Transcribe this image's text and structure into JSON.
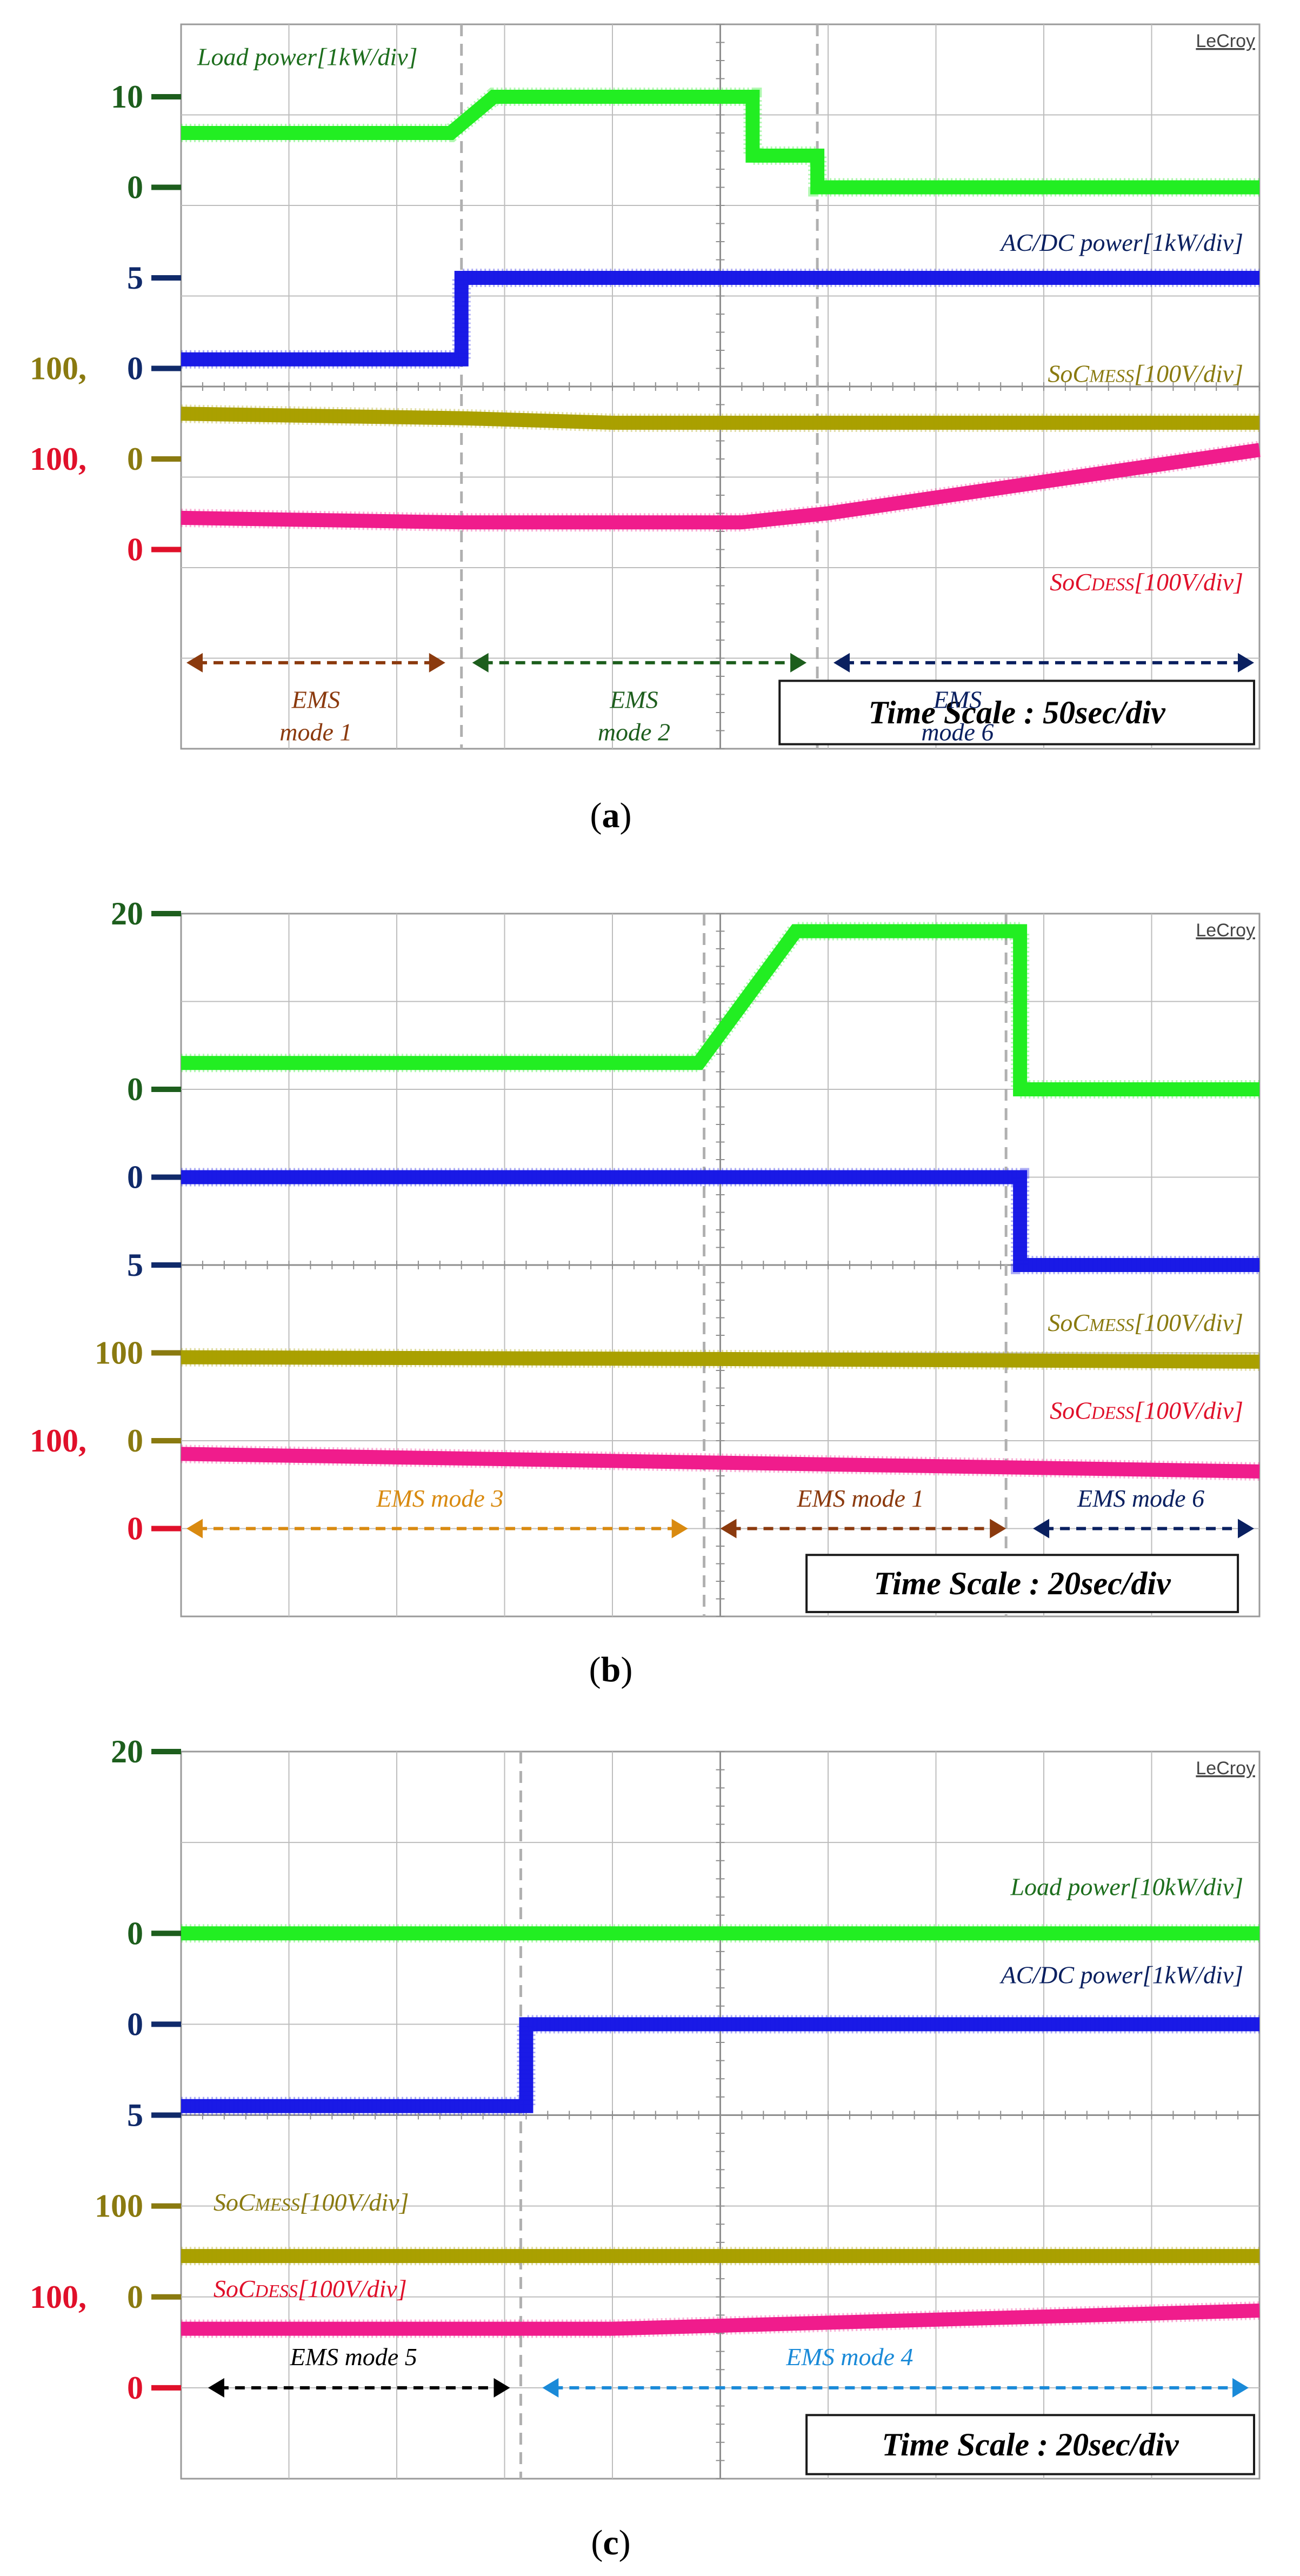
{
  "colors": {
    "load": "#22ee22",
    "acdc": "#1a1ae6",
    "mess": "#aaa000",
    "dess": "#f01c8c",
    "grid": "#bdbdbd",
    "dash": "#b0b0b0",
    "ylab_green": "#1d5e1d",
    "ylab_blue": "#102a6a",
    "ylab_olive": "#8a7a10",
    "ylab_red": "#e0102a"
  },
  "chart_data": [
    {
      "type": "line",
      "caption": "(a)",
      "brand": "LeCroy",
      "time_scale": "Time Scale : 50sec/div",
      "x_divisions": 10,
      "y_divisions": 8,
      "y_labels": [
        {
          "text": "10",
          "level": 7.2,
          "color": "ylab_green"
        },
        {
          "text": "0",
          "level": 6.2,
          "color": "ylab_green"
        },
        {
          "text": "5",
          "level": 5.2,
          "color": "ylab_blue"
        },
        {
          "text": "100,",
          "level": 4.2,
          "color": "ylab_olive",
          "shift": 1
        },
        {
          "text": "0",
          "level": 4.2,
          "color": "ylab_blue"
        },
        {
          "text": "100,",
          "level": 3.2,
          "color": "ylab_red",
          "shift": 1
        },
        {
          "text": "0",
          "level": 3.2,
          "color": "ylab_olive"
        },
        {
          "text": "0",
          "level": 2.2,
          "color": "ylab_red"
        }
      ],
      "series": [
        {
          "key": "load",
          "points": [
            [
              0,
              6.8
            ],
            [
              2.5,
              6.8
            ],
            [
              2.9,
              7.2
            ],
            [
              5.3,
              7.2
            ],
            [
              5.3,
              6.55
            ],
            [
              5.9,
              6.55
            ],
            [
              5.9,
              6.2
            ],
            [
              10,
              6.2
            ]
          ]
        },
        {
          "key": "acdc",
          "points": [
            [
              0,
              4.3
            ],
            [
              2.6,
              4.3
            ],
            [
              2.6,
              5.2
            ],
            [
              10,
              5.2
            ]
          ]
        },
        {
          "key": "mess",
          "points": [
            [
              0,
              3.7
            ],
            [
              2.6,
              3.65
            ],
            [
              4.0,
              3.6
            ],
            [
              10,
              3.6
            ]
          ]
        },
        {
          "key": "dess",
          "points": [
            [
              0,
              2.55
            ],
            [
              2.6,
              2.5
            ],
            [
              5.2,
              2.5
            ],
            [
              6.0,
              2.6
            ],
            [
              10,
              3.3
            ]
          ]
        }
      ],
      "vlines": [
        2.6,
        5.9
      ],
      "labels": [
        {
          "text": "Load power[1kW/div]",
          "x": 0.15,
          "level": 7.55,
          "anchor": "start",
          "color": "load_text"
        },
        {
          "text": "AC/DC power[1kW/div]",
          "x": 9.85,
          "level": 5.5,
          "anchor": "end",
          "color": "acdc_text"
        },
        {
          "text": "SoC",
          "sub": "MESS",
          "tail": "[100V/div]",
          "x": 9.85,
          "level": 4.05,
          "anchor": "end",
          "color": "mess_text"
        },
        {
          "text": "SoC",
          "sub": "DESS",
          "tail": "[100V/div]",
          "x": 9.85,
          "level": 1.75,
          "anchor": "end",
          "color": "dess_text"
        }
      ],
      "arrows": [
        {
          "x1": 0.05,
          "x2": 2.45,
          "level": 0.95,
          "color": "#8b3a0e"
        },
        {
          "x1": 2.7,
          "x2": 5.8,
          "level": 0.95,
          "color": "#1d5e1d"
        },
        {
          "x1": 6.05,
          "x2": 9.95,
          "level": 0.95,
          "color": "#0a2060"
        }
      ],
      "modes": [
        {
          "lines": [
            "EMS",
            "mode 1"
          ],
          "x": 1.25,
          "level": 0.45,
          "color": "#8b3a0e"
        },
        {
          "lines": [
            "EMS",
            "mode 2"
          ],
          "x": 4.2,
          "level": 0.45,
          "color": "#1d5e1d"
        },
        {
          "lines": [
            "EMS",
            "mode 6"
          ],
          "x": 7.2,
          "level": 0.45,
          "color": "#0a2060"
        }
      ],
      "ts_box": {
        "x1": 5.55,
        "x2": 9.95,
        "level_top": 0.75,
        "level_bot": 0.05
      }
    },
    {
      "type": "line",
      "caption": "(b)",
      "brand": "LeCroy",
      "time_scale": "Time Scale : 20sec/div",
      "x_divisions": 10,
      "y_divisions": 8,
      "y_labels": [
        {
          "text": "20",
          "level": 8.0,
          "color": "ylab_green"
        },
        {
          "text": "0",
          "level": 6.0,
          "color": "ylab_green"
        },
        {
          "text": "0",
          "level": 5.0,
          "color": "ylab_blue"
        },
        {
          "text": "5",
          "level": 4.0,
          "color": "ylab_blue"
        },
        {
          "text": "100",
          "level": 3.0,
          "color": "ylab_olive"
        },
        {
          "text": "100,",
          "level": 2.0,
          "color": "ylab_red",
          "shift": 1
        },
        {
          "text": "0",
          "level": 2.0,
          "color": "ylab_olive"
        },
        {
          "text": "0",
          "level": 1.0,
          "color": "ylab_red"
        }
      ],
      "series": [
        {
          "key": "load",
          "points": [
            [
              0,
              6.3
            ],
            [
              4.8,
              6.3
            ],
            [
              5.7,
              7.8
            ],
            [
              10,
              7.8
            ]
          ],
          "drop": [
            [
              10,
              7.8
            ]
          ],
          "pts2": [
            [
              0,
              6.3
            ],
            [
              4.8,
              6.3
            ],
            [
              5.7,
              7.8
            ],
            [
              7.78,
              7.8
            ],
            [
              7.78,
              6.0
            ],
            [
              10,
              6.0
            ]
          ]
        },
        {
          "key": "acdc",
          "points": [
            [
              0,
              5.0
            ],
            [
              7.78,
              5.0
            ],
            [
              7.78,
              4.0
            ],
            [
              10,
              4.0
            ]
          ]
        },
        {
          "key": "mess",
          "points": [
            [
              0,
              2.95
            ],
            [
              5,
              2.93
            ],
            [
              10,
              2.9
            ]
          ]
        },
        {
          "key": "dess",
          "points": [
            [
              0,
              1.85
            ],
            [
              5,
              1.75
            ],
            [
              10,
              1.65
            ]
          ]
        }
      ],
      "vlines": [
        4.85,
        7.65
      ],
      "labels": [
        {
          "text": "SoC",
          "sub": "MESS",
          "tail": "[100V/div]",
          "x": 9.85,
          "level": 3.25,
          "anchor": "end",
          "color": "mess_text"
        },
        {
          "text": "SoC",
          "sub": "DESS",
          "tail": "[100V/div]",
          "x": 9.85,
          "level": 2.25,
          "anchor": "end",
          "color": "dess_text"
        }
      ],
      "arrows": [
        {
          "x1": 0.05,
          "x2": 4.7,
          "level": 1.0,
          "color": "#d98a10"
        },
        {
          "x1": 5.0,
          "x2": 7.65,
          "level": 1.0,
          "color": "#8b3a0e"
        },
        {
          "x1": 7.9,
          "x2": 9.95,
          "level": 1.0,
          "color": "#0a2060"
        }
      ],
      "modes": [
        {
          "lines": [
            "EMS mode 3"
          ],
          "x": 2.4,
          "level": 1.25,
          "color": "#d98a10"
        },
        {
          "lines": [
            "EMS mode 1"
          ],
          "x": 6.3,
          "level": 1.25,
          "color": "#8b3a0e"
        },
        {
          "lines": [
            "EMS mode 6"
          ],
          "x": 8.9,
          "level": 1.25,
          "color": "#0a2060"
        }
      ],
      "ts_box": {
        "x1": 5.8,
        "x2": 9.8,
        "level_top": 0.7,
        "level_bot": 0.05
      }
    },
    {
      "type": "line",
      "caption": "(c)",
      "brand": "LeCroy",
      "time_scale": "Time Scale : 20sec/div",
      "x_divisions": 10,
      "y_divisions": 8,
      "y_labels": [
        {
          "text": "20",
          "level": 8.0,
          "color": "ylab_green"
        },
        {
          "text": "0",
          "level": 6.0,
          "color": "ylab_green"
        },
        {
          "text": "0",
          "level": 5.0,
          "color": "ylab_blue"
        },
        {
          "text": "5",
          "level": 4.0,
          "color": "ylab_blue"
        },
        {
          "text": "100",
          "level": 3.0,
          "color": "ylab_olive"
        },
        {
          "text": "100,",
          "level": 2.0,
          "color": "ylab_red",
          "shift": 1
        },
        {
          "text": "0",
          "level": 2.0,
          "color": "ylab_olive"
        },
        {
          "text": "0",
          "level": 1.0,
          "color": "ylab_red"
        }
      ],
      "series": [
        {
          "key": "load",
          "points": [
            [
              0,
              6.0
            ],
            [
              10,
              6.0
            ]
          ]
        },
        {
          "key": "acdc",
          "points": [
            [
              0,
              4.1
            ],
            [
              3.2,
              4.1
            ],
            [
              3.2,
              5.0
            ],
            [
              10,
              5.0
            ]
          ]
        },
        {
          "key": "mess",
          "points": [
            [
              0,
              2.45
            ],
            [
              10,
              2.45
            ]
          ]
        },
        {
          "key": "dess",
          "points": [
            [
              0,
              1.65
            ],
            [
              4,
              1.65
            ],
            [
              10,
              1.85
            ]
          ]
        }
      ],
      "vlines": [
        3.15
      ],
      "labels": [
        {
          "text": "Load power[10kW/div]",
          "x": 9.85,
          "level": 6.42,
          "anchor": "end",
          "color": "load_text"
        },
        {
          "text": "AC/DC power[1kW/div]",
          "x": 9.85,
          "level": 5.45,
          "anchor": "end",
          "color": "acdc_text"
        },
        {
          "text": "SoC",
          "sub": "MESS",
          "tail": "[100V/div]",
          "x": 0.3,
          "level": 2.95,
          "anchor": "start",
          "color": "mess_text"
        },
        {
          "text": "SoC",
          "sub": "DESS",
          "tail": "[100V/div]",
          "x": 0.3,
          "level": 2.0,
          "anchor": "start",
          "color": "dess_text"
        }
      ],
      "arrows": [
        {
          "x1": 0.25,
          "x2": 3.05,
          "level": 1.0,
          "color": "#000000"
        },
        {
          "x1": 3.35,
          "x2": 9.9,
          "level": 1.0,
          "color": "#1a8ad8"
        }
      ],
      "modes": [
        {
          "lines": [
            "EMS mode 5"
          ],
          "x": 1.6,
          "level": 1.25,
          "color": "#000000"
        },
        {
          "lines": [
            "EMS mode 4"
          ],
          "x": 6.2,
          "level": 1.25,
          "color": "#1a8ad8"
        }
      ],
      "ts_box": {
        "x1": 5.8,
        "x2": 9.95,
        "level_top": 0.7,
        "level_bot": 0.05
      }
    }
  ],
  "text_colors": {
    "load_text": "#1d6e1d",
    "acdc_text": "#0a2060",
    "mess_text": "#8a7a10",
    "dess_text": "#e0102a"
  }
}
